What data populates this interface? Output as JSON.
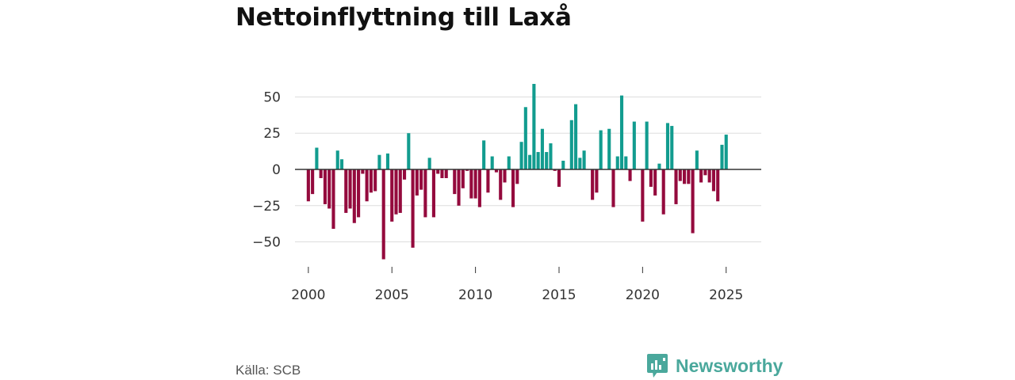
{
  "colors": {
    "positive": "#129c8f",
    "negative": "#940a3d",
    "grid": "#dddddd",
    "axis": "#333333",
    "brand": "#4aa89c"
  },
  "footer": {
    "source": "Källa: SCB",
    "brand": "Newsworthy"
  },
  "chart_data": {
    "type": "bar",
    "title": "Nettoinflyttning till Laxå",
    "xlabel": "",
    "ylabel": "",
    "ylim": [
      -65,
      65
    ],
    "xlim": [
      1999.2,
      2027.1
    ],
    "yticks": [
      50,
      25,
      0,
      -25,
      -50
    ],
    "ytick_labels": [
      "50",
      "25",
      "0",
      "−25",
      "−50"
    ],
    "xticks": [
      2000,
      2005,
      2010,
      2015,
      2020,
      2025
    ],
    "xtick_labels": [
      "2000",
      "2005",
      "2010",
      "2015",
      "2020",
      "2025"
    ],
    "x_start": 2000.0,
    "x_step": 0.25,
    "values": [
      -22,
      -17,
      15,
      -6,
      -24,
      -27,
      -41,
      13,
      7,
      -30,
      -27,
      -37,
      -33,
      -3,
      -22,
      -16,
      -15,
      10,
      -62,
      11,
      -36,
      -31,
      -30,
      -7,
      25,
      -54,
      -18,
      -14,
      -33,
      8,
      -33,
      -3,
      -6,
      -6,
      0,
      -17,
      -25,
      -13,
      -1,
      -20,
      -20,
      -26,
      20,
      -16,
      9,
      -2,
      -21,
      -9,
      9,
      -26,
      -10,
      19,
      43,
      10,
      59,
      12,
      28,
      12,
      18,
      -1,
      -12,
      6,
      0,
      34,
      45,
      8,
      13,
      0,
      -21,
      -16,
      27,
      0,
      28,
      -26,
      9,
      51,
      9,
      -8,
      33,
      0,
      -36,
      33,
      -12,
      -18,
      4,
      -31,
      32,
      30,
      -24,
      -8,
      -10,
      -10,
      -44,
      13,
      -9,
      -4,
      -9,
      -15,
      -22,
      17,
      24
    ]
  }
}
